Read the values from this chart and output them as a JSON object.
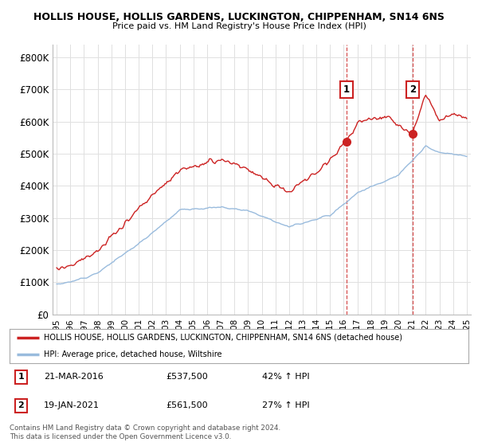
{
  "title1": "HOLLIS HOUSE, HOLLIS GARDENS, LUCKINGTON, CHIPPENHAM, SN14 6NS",
  "title2": "Price paid vs. HM Land Registry's House Price Index (HPI)",
  "background_color": "#ffffff",
  "plot_bg_color": "#ffffff",
  "grid_color": "#e0e0e0",
  "red_color": "#cc2222",
  "blue_color": "#99bbdd",
  "ann1_x": 2016.2,
  "ann1_y": 537500,
  "ann2_x": 2021.05,
  "ann2_y": 561500,
  "legend1": "HOLLIS HOUSE, HOLLIS GARDENS, LUCKINGTON, CHIPPENHAM, SN14 6NS (detached house)",
  "legend2": "HPI: Average price, detached house, Wiltshire",
  "footer": "Contains HM Land Registry data © Crown copyright and database right 2024.\nThis data is licensed under the Open Government Licence v3.0.",
  "yticks": [
    0,
    100000,
    200000,
    300000,
    400000,
    500000,
    600000,
    700000,
    800000
  ],
  "ytick_labels": [
    "£0",
    "£100K",
    "£200K",
    "£300K",
    "£400K",
    "£500K",
    "£600K",
    "£700K",
    "£800K"
  ],
  "ylim": [
    0,
    840000
  ],
  "xlim_start": 1994.7,
  "xlim_end": 2025.3
}
